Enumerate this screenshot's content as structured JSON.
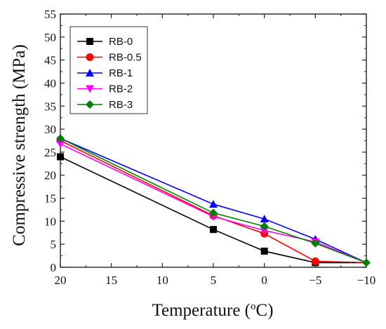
{
  "chart_data": {
    "type": "line",
    "title": "",
    "xlabel": "Temperature (",
    "xlabel_sup": "o",
    "xlabel_unit": "C)",
    "ylabel": "Compressive strength (MPa)",
    "x_ticks": [
      "20",
      "15",
      "10",
      "5",
      "0",
      "−5",
      "−10"
    ],
    "y_ticks": [
      "0",
      "5",
      "10",
      "15",
      "20",
      "25",
      "30",
      "35",
      "40",
      "45",
      "50",
      "55"
    ],
    "ylim": [
      0,
      55
    ],
    "grid": false,
    "legend_position": "top-left",
    "x_positions": [
      0,
      3,
      4,
      5
    ],
    "series": [
      {
        "name": "RB-0",
        "color": "#000000",
        "marker": "square",
        "values": [
          24.0,
          8.2,
          3.5,
          1.0
        ]
      },
      {
        "name": "RB-0.5",
        "color": "#ff0000",
        "marker": "circle",
        "values": [
          27.5,
          11.2,
          7.3,
          1.3
        ]
      },
      {
        "name": "RB-1",
        "color": "#0000ff",
        "marker": "triangle-up",
        "values": [
          28.0,
          13.7,
          10.5,
          6.1
        ]
      },
      {
        "name": "RB-2",
        "color": "#ff00ff",
        "marker": "triangle-down",
        "values": [
          26.8,
          11.0,
          8.0,
          5.5
        ]
      },
      {
        "name": "RB-3",
        "color": "#008000",
        "marker": "diamond",
        "values": [
          28.0,
          11.8,
          8.9,
          5.2
        ]
      }
    ],
    "endpoint": {
      "x_position": 6,
      "value": 1.0
    }
  }
}
